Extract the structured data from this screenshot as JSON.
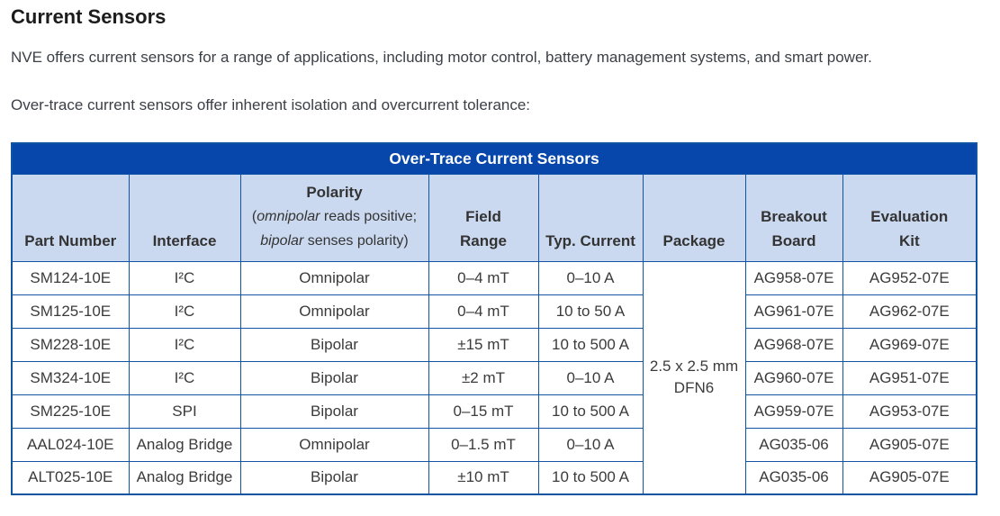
{
  "page": {
    "title": "Current Sensors",
    "intro": "NVE offers current sensors for a range of applications, including motor control, battery management systems, and smart power.",
    "table_intro": "Over-trace current sensors offer inherent isolation and overcurrent tolerance:"
  },
  "colors": {
    "table_title_bg": "#0747ab",
    "column_header_bg": "#cbd9f0",
    "table_border": "#1254a4",
    "table_title_text": "#ffffff",
    "body_text": "#3b3b3b"
  },
  "table": {
    "title": "Over-Trace Current Sensors",
    "columns": {
      "part_number": "Part Number",
      "interface": "Interface",
      "polarity_title": "Polarity",
      "polarity_note": {
        "open": "(",
        "italic1": "omnipolar",
        "rest1": " reads positive;",
        "italic2": "bipolar",
        "rest2": " senses polarity)"
      },
      "field_range_line1": "Field",
      "field_range_line2": "Range",
      "typ_current": "Typ. Current",
      "package": "Package",
      "breakout_line1": "Breakout",
      "breakout_line2": "Board",
      "evaluation_line1": "Evaluation",
      "evaluation_line2": "Kit"
    },
    "package_cell": {
      "line1": "2.5 x 2.5 mm",
      "line2": "DFN6"
    },
    "rows": [
      {
        "part_number": "SM124-10E",
        "interface": "I²C",
        "polarity": "Omnipolar",
        "field_range": "0–4 mT",
        "typ_current": "0–10 A",
        "breakout_board": "AG958-07E",
        "evaluation_kit": "AG952-07E"
      },
      {
        "part_number": "SM125-10E",
        "interface": "I²C",
        "polarity": "Omnipolar",
        "field_range": "0–4 mT",
        "typ_current": "10 to 50 A",
        "breakout_board": "AG961-07E",
        "evaluation_kit": "AG962-07E"
      },
      {
        "part_number": "SM228-10E",
        "interface": "I²C",
        "polarity": "Bipolar",
        "field_range": "±15 mT",
        "typ_current": "10 to 500 A",
        "breakout_board": "AG968-07E",
        "evaluation_kit": "AG969-07E"
      },
      {
        "part_number": "SM324-10E",
        "interface": "I²C",
        "polarity": "Bipolar",
        "field_range": "±2 mT",
        "typ_current": "0–10 A",
        "breakout_board": "AG960-07E",
        "evaluation_kit": "AG951-07E"
      },
      {
        "part_number": "SM225-10E",
        "interface": "SPI",
        "polarity": "Bipolar",
        "field_range": "0–15 mT",
        "typ_current": "10 to 500 A",
        "breakout_board": "AG959-07E",
        "evaluation_kit": "AG953-07E"
      },
      {
        "part_number": "AAL024-10E",
        "interface": "Analog Bridge",
        "polarity": "Omnipolar",
        "field_range": "0–1.5 mT",
        "typ_current": "0–10 A",
        "breakout_board": "AG035-06",
        "evaluation_kit": "AG905-07E"
      },
      {
        "part_number": "ALT025-10E",
        "interface": "Analog Bridge",
        "polarity": "Bipolar",
        "field_range": "±10 mT",
        "typ_current": "10 to 500 A",
        "breakout_board": "AG035-06",
        "evaluation_kit": "AG905-07E"
      }
    ]
  }
}
